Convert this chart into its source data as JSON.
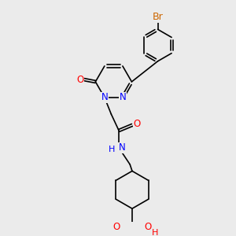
{
  "bg_color": "#ebebeb",
  "atom_colors": {
    "N": "#0000ff",
    "O": "#ff0000",
    "Br": "#cc6600",
    "C": "#000000",
    "H_N": "#0000ff",
    "H_O": "#ff0000"
  },
  "font_size": 8.5,
  "fig_size": [
    3.0,
    3.0
  ],
  "dpi": 100
}
